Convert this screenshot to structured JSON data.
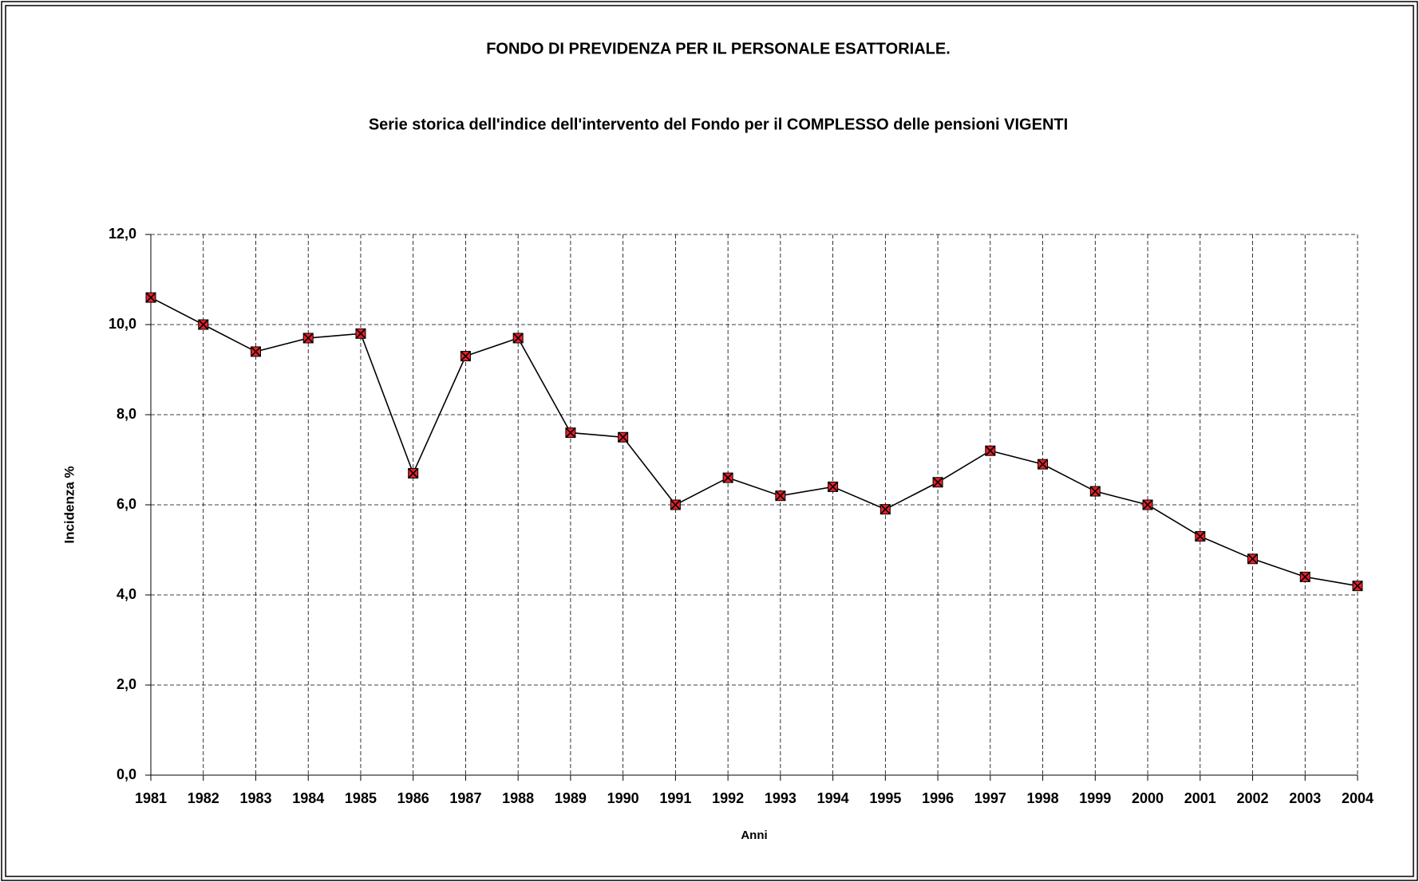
{
  "chart_data": {
    "type": "line",
    "title": "FONDO DI PREVIDENZA PER IL PERSONALE ESATTORIALE.",
    "subtitle": "Serie storica dell'indice dell'intervento del Fondo per il COMPLESSO delle pensioni VIGENTI",
    "x_label": "Anni",
    "y_label": "Incidenza %",
    "categories": [
      "1981",
      "1982",
      "1983",
      "1984",
      "1985",
      "1986",
      "1987",
      "1988",
      "1989",
      "1990",
      "1991",
      "1992",
      "1993",
      "1994",
      "1995",
      "1996",
      "1997",
      "1998",
      "1999",
      "2000",
      "2001",
      "2002",
      "2003",
      "2004"
    ],
    "series": [
      {
        "name": "Incidenza %",
        "color": "#000000",
        "marker_color": "#e8202a",
        "values": [
          10.6,
          10.0,
          9.4,
          9.7,
          9.8,
          6.7,
          9.3,
          9.7,
          7.6,
          7.5,
          6.0,
          6.6,
          6.2,
          6.4,
          5.9,
          6.5,
          7.2,
          6.9,
          6.3,
          6.0,
          5.3,
          4.8,
          4.4,
          4.2
        ]
      }
    ],
    "ylim": [
      0,
      12
    ],
    "yticks": [
      {
        "value": 0,
        "label": "0,0"
      },
      {
        "value": 2,
        "label": "2,0"
      },
      {
        "value": 4,
        "label": "4,0"
      },
      {
        "value": 6,
        "label": "6,0"
      },
      {
        "value": 8,
        "label": "8,0"
      },
      {
        "value": 10,
        "label": "10,0"
      },
      {
        "value": 12,
        "label": "12,0"
      }
    ],
    "grid": true
  }
}
